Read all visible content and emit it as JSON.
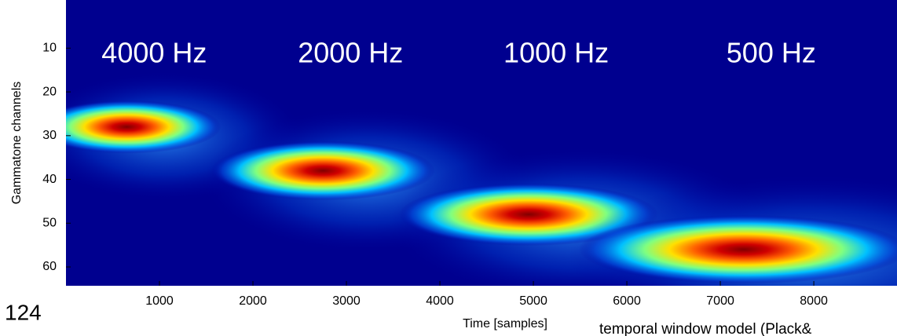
{
  "slide_number": "124",
  "caption": "temporal window model (Plack&",
  "chart_data": {
    "type": "heatmap",
    "xlabel": "Time [samples]",
    "ylabel": "Gammatone channels",
    "xlim": [
      0,
      8890
    ],
    "ylim": [
      64.3,
      -1
    ],
    "y_inverted": true,
    "xticks": [
      1000,
      2000,
      3000,
      4000,
      5000,
      6000,
      7000,
      8000
    ],
    "yticks": [
      10,
      20,
      30,
      40,
      50,
      60
    ],
    "background": "#00008f",
    "peaks": [
      {
        "label": "4000 Hz",
        "x": 650,
        "y": 28
      },
      {
        "label": "2000 Hz",
        "x": 2750,
        "y": 38
      },
      {
        "label": "1000 Hz",
        "x": 4950,
        "y": 48
      },
      {
        "label": "500 Hz",
        "x": 7250,
        "y": 56
      }
    ]
  }
}
